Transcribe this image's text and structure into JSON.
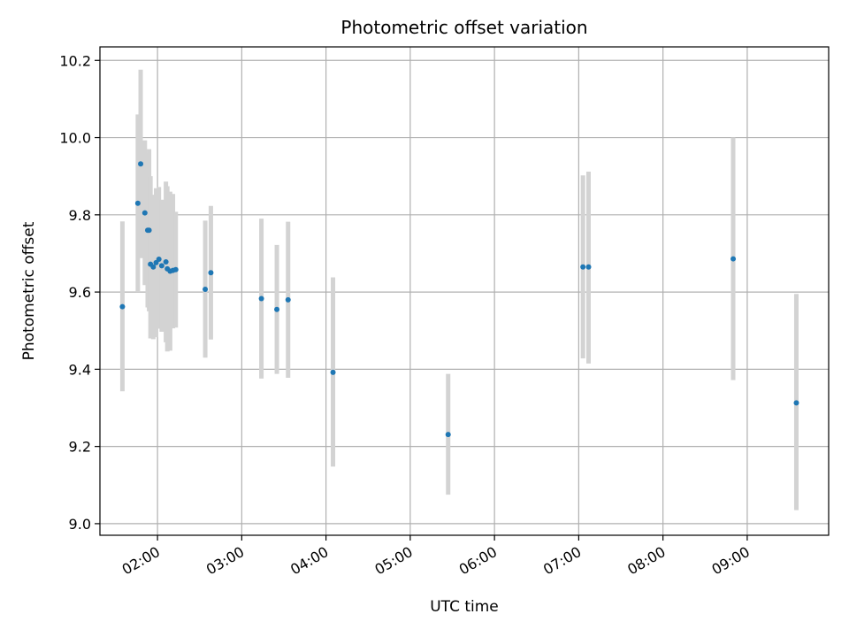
{
  "chart_data": {
    "type": "scatter",
    "title": "Photometric offset variation",
    "xlabel": "UTC time",
    "ylabel": "Photometric offset",
    "xlim": [
      "01:19",
      "09:58"
    ],
    "ylim": [
      8.97,
      10.235
    ],
    "grid": true,
    "x_ticks": [
      "02:00",
      "03:00",
      "04:00",
      "05:00",
      "06:00",
      "07:00",
      "08:00",
      "09:00"
    ],
    "y_ticks": [
      "9.0",
      "9.2",
      "9.4",
      "9.6",
      "9.8",
      "10.0",
      "10.2"
    ],
    "colors": {
      "point": "#1f77b4",
      "errorbar": "#d3d3d3",
      "grid": "#b0b0b0"
    },
    "points": [
      {
        "x": "01:35",
        "y": 9.562,
        "low": 9.343,
        "high": 9.783
      },
      {
        "x": "01:46",
        "y": 9.83,
        "low": 9.6,
        "high": 10.06
      },
      {
        "x": "01:48",
        "y": 9.932,
        "low": 9.688,
        "high": 10.176
      },
      {
        "x": "01:51",
        "y": 9.805,
        "low": 9.618,
        "high": 9.993
      },
      {
        "x": "01:53",
        "y": 9.76,
        "low": 9.56,
        "high": 9.96
      },
      {
        "x": "01:54",
        "y": 9.76,
        "low": 9.55,
        "high": 9.97
      },
      {
        "x": "01:55",
        "y": 9.672,
        "low": 9.48,
        "high": 9.9
      },
      {
        "x": "01:57",
        "y": 9.665,
        "low": 9.478,
        "high": 9.852
      },
      {
        "x": "01:59",
        "y": 9.676,
        "low": 9.483,
        "high": 9.869
      },
      {
        "x": "02:01",
        "y": 9.685,
        "low": 9.505,
        "high": 9.872
      },
      {
        "x": "02:03",
        "y": 9.668,
        "low": 9.497,
        "high": 9.839
      },
      {
        "x": "02:06",
        "y": 9.678,
        "low": 9.47,
        "high": 9.886
      },
      {
        "x": "02:07",
        "y": 9.66,
        "low": 9.446,
        "high": 9.874
      },
      {
        "x": "02:09",
        "y": 9.654,
        "low": 9.448,
        "high": 9.86
      },
      {
        "x": "02:11",
        "y": 9.656,
        "low": 9.506,
        "high": 9.854
      },
      {
        "x": "02:13",
        "y": 9.658,
        "low": 9.508,
        "high": 9.808
      },
      {
        "x": "02:34",
        "y": 9.607,
        "low": 9.43,
        "high": 9.785
      },
      {
        "x": "02:38",
        "y": 9.65,
        "low": 9.477,
        "high": 9.823
      },
      {
        "x": "03:14",
        "y": 9.583,
        "low": 9.376,
        "high": 9.79
      },
      {
        "x": "03:25",
        "y": 9.555,
        "low": 9.388,
        "high": 9.722
      },
      {
        "x": "03:33",
        "y": 9.58,
        "low": 9.378,
        "high": 9.782
      },
      {
        "x": "04:05",
        "y": 9.392,
        "low": 9.148,
        "high": 9.638
      },
      {
        "x": "05:27",
        "y": 9.231,
        "low": 9.075,
        "high": 9.388
      },
      {
        "x": "07:03",
        "y": 9.665,
        "low": 9.428,
        "high": 9.902
      },
      {
        "x": "07:07",
        "y": 9.665,
        "low": 9.415,
        "high": 9.912
      },
      {
        "x": "08:50",
        "y": 9.686,
        "low": 9.372,
        "high": 10.0
      },
      {
        "x": "09:35",
        "y": 9.313,
        "low": 9.035,
        "high": 9.595
      }
    ]
  }
}
